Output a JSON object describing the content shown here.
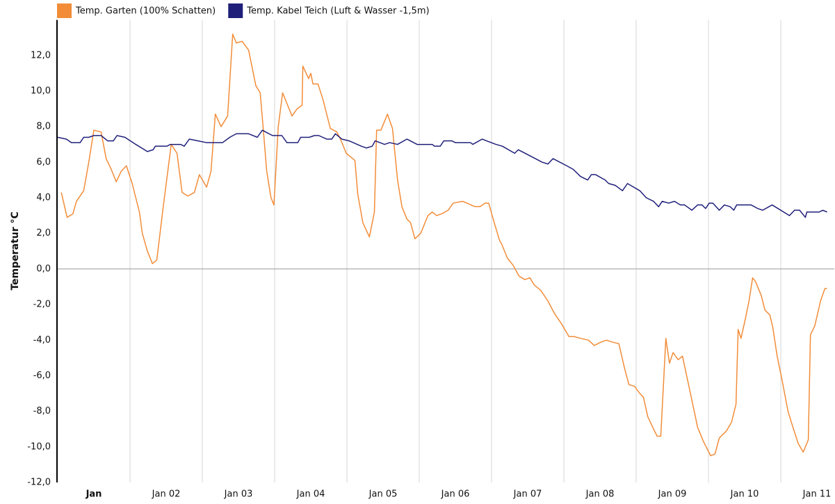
{
  "chart_data": {
    "type": "line",
    "ylabel": "Temperatur °C",
    "xlim": [
      0,
      10.74
    ],
    "ylim": [
      -12,
      14
    ],
    "yticks": [
      {
        "value": -12,
        "label": "-12,0"
      },
      {
        "value": -10,
        "label": "-10,0"
      },
      {
        "value": -8,
        "label": "-8,0"
      },
      {
        "value": -6,
        "label": "-6,0"
      },
      {
        "value": -4,
        "label": "-4,0"
      },
      {
        "value": -2,
        "label": "-2,0"
      },
      {
        "value": 0,
        "label": "0,0"
      },
      {
        "value": 2,
        "label": "2,0"
      },
      {
        "value": 4,
        "label": "4,0"
      },
      {
        "value": 6,
        "label": "6,0"
      },
      {
        "value": 8,
        "label": "8,0"
      },
      {
        "value": 10,
        "label": "10,0"
      },
      {
        "value": 12,
        "label": "12,0"
      }
    ],
    "xticks": [
      {
        "value": 0.5,
        "label": "Jan"
      },
      {
        "value": 1.5,
        "label": "Jan 02"
      },
      {
        "value": 2.5,
        "label": "Jan 03"
      },
      {
        "value": 3.5,
        "label": "Jan 04"
      },
      {
        "value": 4.5,
        "label": "Jan 05"
      },
      {
        "value": 5.5,
        "label": "Jan 06"
      },
      {
        "value": 6.5,
        "label": "Jan 07"
      },
      {
        "value": 7.5,
        "label": "Jan 08"
      },
      {
        "value": 8.5,
        "label": "Jan 09"
      },
      {
        "value": 9.5,
        "label": "Jan 10"
      },
      {
        "value": 10.5,
        "label": "Jan 11"
      }
    ],
    "xgrid": [
      1,
      2,
      3,
      4,
      5,
      6,
      7,
      8,
      9,
      10
    ],
    "legend": "top-left",
    "series": [
      {
        "name": "Temp. Garten (100% Schatten)",
        "color": "#f28c38",
        "x": [
          0.05,
          0.13,
          0.21,
          0.26,
          0.36,
          0.43,
          0.5,
          0.6,
          0.67,
          0.74,
          0.81,
          0.88,
          0.95,
          1.03,
          1.13,
          1.17,
          1.24,
          1.31,
          1.37,
          1.46,
          1.57,
          1.65,
          1.72,
          1.8,
          1.89,
          1.96,
          2.06,
          2.12,
          2.18,
          2.26,
          2.35,
          2.42,
          2.47,
          2.55,
          2.64,
          2.74,
          2.8,
          2.84,
          2.89,
          2.95,
          2.99,
          3.05,
          3.11,
          3.18,
          3.24,
          3.31,
          3.38,
          3.39,
          3.47,
          3.5,
          3.53,
          3.6,
          3.67,
          3.77,
          3.86,
          3.91,
          3.99,
          4.11,
          4.15,
          4.22,
          4.31,
          4.38,
          4.41,
          4.47,
          4.56,
          4.63,
          4.7,
          4.76,
          4.83,
          4.88,
          4.94,
          5.02,
          5.12,
          5.18,
          5.24,
          5.31,
          5.4,
          5.47,
          5.6,
          5.66,
          5.77,
          5.84,
          5.91,
          5.96,
          6.03,
          6.11,
          6.14,
          6.22,
          6.3,
          6.38,
          6.46,
          6.53,
          6.59,
          6.68,
          6.78,
          6.87,
          6.97,
          7.07,
          7.14,
          7.23,
          7.34,
          7.42,
          7.52,
          7.59,
          7.66,
          7.76,
          7.84,
          7.9,
          7.98,
          8.05,
          8.1,
          8.16,
          8.24,
          8.29,
          8.34,
          8.41,
          8.46,
          8.51,
          8.58,
          8.64,
          8.74,
          8.85,
          8.93,
          9.03,
          9.09,
          9.15,
          9.25,
          9.32,
          9.38,
          9.41,
          9.45,
          9.51,
          9.56,
          9.61,
          9.65,
          9.73,
          9.78,
          9.85,
          9.89,
          9.95,
          10.02,
          10.1,
          10.16,
          10.24,
          10.31,
          10.38,
          10.41,
          10.47,
          10.55,
          10.61,
          10.64
        ],
        "values": [
          4.3,
          2.9,
          3.1,
          3.8,
          4.4,
          6.0,
          7.8,
          7.7,
          6.2,
          5.6,
          4.9,
          5.5,
          5.8,
          4.8,
          3.2,
          2.0,
          1.0,
          0.3,
          0.5,
          3.5,
          7.0,
          6.5,
          4.3,
          4.1,
          4.3,
          5.3,
          4.6,
          5.5,
          8.7,
          8.0,
          8.6,
          13.2,
          12.7,
          12.8,
          12.3,
          10.3,
          9.9,
          8.0,
          5.5,
          4.0,
          3.6,
          8.0,
          9.9,
          9.2,
          8.6,
          9.0,
          9.2,
          11.4,
          10.7,
          11.0,
          10.4,
          10.4,
          9.5,
          7.9,
          7.7,
          7.3,
          6.5,
          6.1,
          4.2,
          2.6,
          1.8,
          3.2,
          7.8,
          7.8,
          8.7,
          7.9,
          5.0,
          3.5,
          2.8,
          2.6,
          1.7,
          2.0,
          3.0,
          3.2,
          3.0,
          3.1,
          3.3,
          3.7,
          3.8,
          3.7,
          3.5,
          3.5,
          3.7,
          3.7,
          2.7,
          1.6,
          1.4,
          0.6,
          0.2,
          -0.4,
          -0.6,
          -0.5,
          -0.9,
          -1.2,
          -1.8,
          -2.5,
          -3.1,
          -3.8,
          -3.8,
          -3.9,
          -4.0,
          -4.3,
          -4.1,
          -4.0,
          -4.1,
          -4.2,
          -5.6,
          -6.5,
          -6.6,
          -7.0,
          -7.2,
          -8.3,
          -9.0,
          -9.4,
          -9.4,
          -3.9,
          -5.3,
          -4.7,
          -5.1,
          -4.9,
          -6.8,
          -8.9,
          -9.7,
          -10.5,
          -10.4,
          -9.5,
          -9.1,
          -8.6,
          -7.6,
          -3.4,
          -3.9,
          -2.8,
          -1.8,
          -0.5,
          -0.7,
          -1.5,
          -2.3,
          -2.6,
          -3.3,
          -4.9,
          -6.3,
          -8.0,
          -8.8,
          -9.8,
          -10.3,
          -9.6,
          -3.7,
          -3.2,
          -1.8,
          -1.1,
          -1.1
        ]
      },
      {
        "name": "Temp. Kabel Teich (Luft & Wasser -1,5m)",
        "color": "#1f1f7a",
        "x": [
          0.0,
          0.12,
          0.19,
          0.31,
          0.36,
          0.43,
          0.5,
          0.6,
          0.69,
          0.77,
          0.82,
          0.93,
          1.08,
          1.24,
          1.32,
          1.35,
          1.51,
          1.56,
          1.7,
          1.75,
          1.82,
          1.94,
          2.06,
          2.28,
          2.38,
          2.47,
          2.64,
          2.76,
          2.83,
          2.97,
          3.1,
          3.17,
          3.32,
          3.36,
          3.48,
          3.55,
          3.61,
          3.72,
          3.79,
          3.84,
          3.93,
          4.03,
          4.2,
          4.27,
          4.35,
          4.39,
          4.52,
          4.59,
          4.7,
          4.83,
          4.97,
          5.18,
          5.21,
          5.29,
          5.34,
          5.45,
          5.5,
          5.71,
          5.74,
          5.87,
          5.93,
          6.06,
          6.15,
          6.32,
          6.37,
          6.56,
          6.7,
          6.78,
          6.85,
          7.04,
          7.13,
          7.23,
          7.33,
          7.38,
          7.44,
          7.57,
          7.62,
          7.71,
          7.81,
          7.88,
          8.05,
          8.14,
          8.24,
          8.31,
          8.36,
          8.45,
          8.53,
          8.61,
          8.67,
          8.77,
          8.85,
          8.91,
          8.96,
          9.01,
          9.06,
          9.15,
          9.22,
          9.3,
          9.35,
          9.39,
          9.59,
          9.68,
          9.75,
          9.88,
          10.12,
          10.19,
          10.26,
          10.34,
          10.36,
          10.53,
          10.58,
          10.64
        ],
        "values": [
          7.4,
          7.3,
          7.1,
          7.1,
          7.4,
          7.4,
          7.5,
          7.5,
          7.2,
          7.2,
          7.5,
          7.4,
          7.0,
          6.6,
          6.7,
          6.9,
          6.9,
          7.0,
          7.0,
          6.9,
          7.3,
          7.2,
          7.1,
          7.1,
          7.4,
          7.6,
          7.6,
          7.4,
          7.8,
          7.5,
          7.5,
          7.1,
          7.1,
          7.4,
          7.4,
          7.5,
          7.5,
          7.3,
          7.3,
          7.6,
          7.3,
          7.2,
          6.9,
          6.8,
          6.9,
          7.2,
          7.0,
          7.1,
          7.0,
          7.3,
          7.0,
          7.0,
          6.9,
          6.9,
          7.2,
          7.2,
          7.1,
          7.1,
          7.0,
          7.3,
          7.2,
          7.0,
          6.9,
          6.5,
          6.7,
          6.3,
          6.0,
          5.9,
          6.2,
          5.8,
          5.6,
          5.2,
          5.0,
          5.3,
          5.3,
          5.0,
          4.8,
          4.7,
          4.4,
          4.8,
          4.4,
          4.0,
          3.8,
          3.5,
          3.8,
          3.7,
          3.8,
          3.6,
          3.6,
          3.3,
          3.6,
          3.6,
          3.4,
          3.7,
          3.7,
          3.3,
          3.6,
          3.5,
          3.3,
          3.6,
          3.6,
          3.4,
          3.3,
          3.6,
          3.0,
          3.3,
          3.3,
          2.9,
          3.2,
          3.2,
          3.3,
          3.2
        ]
      }
    ]
  }
}
